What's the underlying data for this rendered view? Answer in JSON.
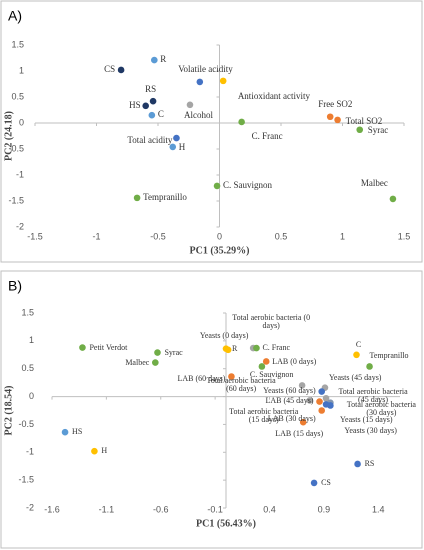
{
  "chart_data": [
    {
      "type": "scatter",
      "panel_label": "A)",
      "xlabel": "PC1 (35.29%)",
      "ylabel": "PC2 (24.18)",
      "xlim": [
        -1.5,
        1.5
      ],
      "ylim": [
        -2,
        1.5
      ],
      "xticks": [
        -1.5,
        -1,
        -0.5,
        0,
        0.5,
        1,
        1.5
      ],
      "yticks": [
        -2,
        -1.5,
        -1,
        -0.5,
        0,
        0.5,
        1,
        1.5
      ],
      "points": [
        {
          "label": "CS",
          "x": -0.8,
          "y": 1.02,
          "color": "#1f3864"
        },
        {
          "label": "R",
          "x": -0.53,
          "y": 1.21,
          "color": "#5b9bd5"
        },
        {
          "label": "RS",
          "x": -0.54,
          "y": 0.42,
          "color": "#1f3864"
        },
        {
          "label": "HS",
          "x": -0.6,
          "y": 0.33,
          "color": "#1f3864"
        },
        {
          "label": "C",
          "x": -0.55,
          "y": 0.15,
          "color": "#5b9bd5"
        },
        {
          "label": "Volatile acidity",
          "x": 0.03,
          "y": 0.81,
          "color": "#ffc000"
        },
        {
          "label": "Antioxidant activity",
          "x": -0.16,
          "y": 0.79,
          "color": "#4472c4"
        },
        {
          "label": "Alcohol",
          "x": -0.24,
          "y": 0.35,
          "color": "#a5a5a5"
        },
        {
          "label": "Total acidity",
          "x": -0.35,
          "y": -0.29,
          "color": "#4472c4"
        },
        {
          "label": "H",
          "x": -0.38,
          "y": -0.46,
          "color": "#5b9bd5"
        },
        {
          "label": "C. Franc",
          "x": 0.18,
          "y": 0.02,
          "color": "#70ad47"
        },
        {
          "label": "Free SO2",
          "x": 0.9,
          "y": 0.12,
          "color": "#ed7d31"
        },
        {
          "label": "Total SO2",
          "x": 0.96,
          "y": 0.06,
          "color": "#ed7d31"
        },
        {
          "label": "Syrac",
          "x": 1.14,
          "y": -0.13,
          "color": "#70ad47"
        },
        {
          "label": "C. Sauvignon",
          "x": -0.02,
          "y": -1.21,
          "color": "#70ad47"
        },
        {
          "label": "Malbec",
          "x": 1.41,
          "y": -1.46,
          "color": "#70ad47"
        },
        {
          "label": "Tempranillo",
          "x": -0.67,
          "y": -1.44,
          "color": "#70ad47"
        }
      ]
    },
    {
      "type": "scatter",
      "panel_label": "B)",
      "xlabel": "PC1 (56.43%)",
      "ylabel": "PC2 (18.54)",
      "xlim": [
        -1.6,
        1.6
      ],
      "ylim": [
        -2,
        1.5
      ],
      "xticks": [
        -1.6,
        -1.1,
        -0.6,
        -0.1,
        0.4,
        0.9,
        1.4
      ],
      "yticks": [
        -2,
        -1.5,
        -1,
        -0.5,
        0,
        0.5,
        1,
        1.5
      ],
      "points": [
        {
          "label": "Petit Verdot",
          "x": -1.32,
          "y": 0.88,
          "color": "#70ad47"
        },
        {
          "label": "Syrac",
          "x": -0.63,
          "y": 0.79,
          "color": "#70ad47"
        },
        {
          "label": "Malbec",
          "x": -0.65,
          "y": 0.61,
          "color": "#70ad47"
        },
        {
          "label": "Yeasts (0 days)",
          "x": 0.02,
          "y": 0.84,
          "color": "#ffc000"
        },
        {
          "label": "R",
          "x": 0.0,
          "y": 0.86,
          "color": "#ffc000"
        },
        {
          "label": "Total aerobic bacteria (0 days)",
          "x": 0.25,
          "y": 0.87,
          "color": "#a5a5a5"
        },
        {
          "label": "C. Franc",
          "x": 0.28,
          "y": 0.87,
          "color": "#70ad47"
        },
        {
          "label": "C. Sauvignon",
          "x": 0.33,
          "y": 0.54,
          "color": "#70ad47"
        },
        {
          "label": "LAB (0 days)",
          "x": 0.37,
          "y": 0.63,
          "color": "#ed7d31"
        },
        {
          "label": "LAB (60 days)",
          "x": 0.05,
          "y": 0.36,
          "color": "#ed7d31"
        },
        {
          "label": "C",
          "x": 1.2,
          "y": 0.75,
          "color": "#ffc000"
        },
        {
          "label": "Tempranillo",
          "x": 1.32,
          "y": 0.54,
          "color": "#70ad47"
        },
        {
          "label": "Total aerobic bacteria (60 days)",
          "x": 0.7,
          "y": 0.2,
          "color": "#a5a5a5"
        },
        {
          "label": "Yeasts (45 days)",
          "x": 0.91,
          "y": 0.16,
          "color": "#a5a5a5"
        },
        {
          "label": "Yeasts (60 days)",
          "x": 0.88,
          "y": 0.09,
          "color": "#4472c4"
        },
        {
          "label": "Total aerobic bacteria (45 days)",
          "x": 0.92,
          "y": -0.03,
          "color": "#a5a5a5"
        },
        {
          "label": "LAB (45 days)",
          "x": 0.86,
          "y": -0.09,
          "color": "#ed7d31"
        },
        {
          "label": "Total aerobic bacteria (30 days)",
          "x": 0.96,
          "y": -0.11,
          "color": "#8497b0"
        },
        {
          "label": "Yeasts (15 days)",
          "x": 0.92,
          "y": -0.14,
          "color": "#4472c4"
        },
        {
          "label": "Yeasts (30 days)",
          "x": 0.96,
          "y": -0.16,
          "color": "#4472c4"
        },
        {
          "label": "LAB (30 days)",
          "x": 0.88,
          "y": -0.25,
          "color": "#ed7d31"
        },
        {
          "label": "Total aerobic bacteria (15 days)",
          "x": 0.77,
          "y": -0.07,
          "color": "#a5a5a5"
        },
        {
          "label": "LAB (15 days)",
          "x": 0.71,
          "y": -0.46,
          "color": "#ed7d31"
        },
        {
          "label": "RS",
          "x": 1.21,
          "y": -1.21,
          "color": "#4472c4"
        },
        {
          "label": "CS",
          "x": 0.81,
          "y": -1.55,
          "color": "#4472c4"
        },
        {
          "label": "HS",
          "x": -1.48,
          "y": -0.64,
          "color": "#5b9bd5"
        },
        {
          "label": "H",
          "x": -1.21,
          "y": -0.98,
          "color": "#ffc000"
        }
      ]
    }
  ]
}
